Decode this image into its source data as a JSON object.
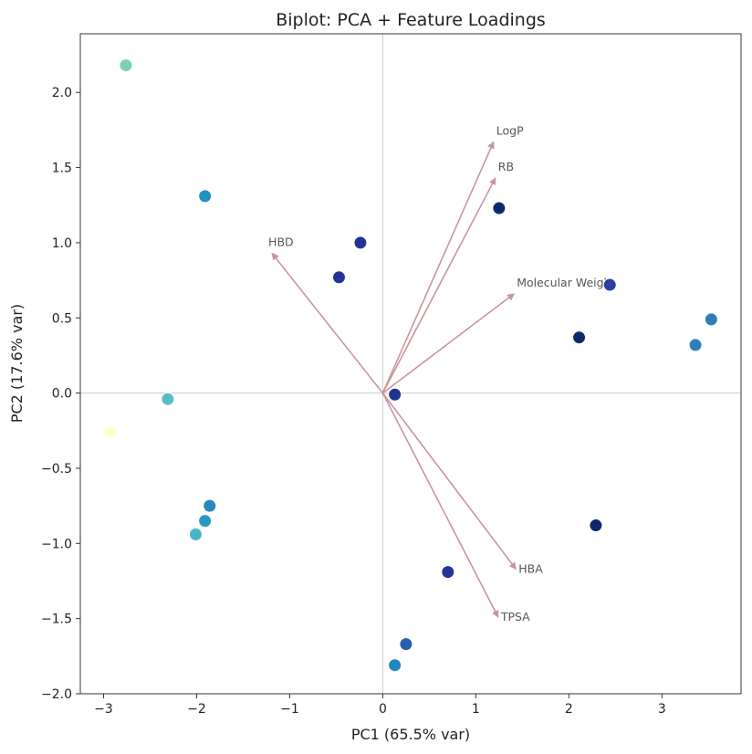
{
  "chart_data": {
    "type": "scatter",
    "title": "Biplot: PCA + Feature Loadings",
    "xlabel": "PC1 (65.5% var)",
    "ylabel": "PC2 (17.6% var)",
    "xlim": [
      -3.25,
      3.85
    ],
    "ylim": [
      -2.0,
      2.39
    ],
    "xticks": [
      -3,
      -2,
      -1,
      0,
      1,
      2,
      3
    ],
    "xtick_labels": [
      "−3",
      "−2",
      "−1",
      "0",
      "1",
      "2",
      "3"
    ],
    "yticks": [
      -2.0,
      -1.5,
      -1.0,
      -0.5,
      0.0,
      0.5,
      1.0,
      1.5,
      2.0
    ],
    "ytick_labels": [
      "−2.0",
      "−1.5",
      "−1.0",
      "−0.5",
      "0.0",
      "0.5",
      "1.0",
      "1.5",
      "2.0"
    ],
    "grid": false,
    "reference_lines": {
      "x": 0,
      "y": 0
    },
    "points": [
      {
        "x": -2.76,
        "y": 2.18,
        "color": "#7fcdbb"
      },
      {
        "x": -1.91,
        "y": 1.31,
        "color": "#1d91c0"
      },
      {
        "x": -0.24,
        "y": 1.0,
        "color": "#253494"
      },
      {
        "x": -0.47,
        "y": 0.77,
        "color": "#253494"
      },
      {
        "x": 1.25,
        "y": 1.23,
        "color": "#0c2a6b"
      },
      {
        "x": 2.44,
        "y": 0.72,
        "color": "#2c3ea0"
      },
      {
        "x": 2.11,
        "y": 0.37,
        "color": "#0c2a6b"
      },
      {
        "x": 3.53,
        "y": 0.49,
        "color": "#2c7fb8"
      },
      {
        "x": 3.36,
        "y": 0.32,
        "color": "#2c7fb8"
      },
      {
        "x": 0.13,
        "y": -0.01,
        "color": "#1f3390"
      },
      {
        "x": -2.31,
        "y": -0.04,
        "color": "#57bfc4"
      },
      {
        "x": -2.93,
        "y": -0.26,
        "color": "#ffffd0"
      },
      {
        "x": -1.86,
        "y": -0.75,
        "color": "#2c86c0"
      },
      {
        "x": -1.91,
        "y": -0.85,
        "color": "#2b97c4"
      },
      {
        "x": -2.01,
        "y": -0.94,
        "color": "#48b6c8"
      },
      {
        "x": 2.29,
        "y": -0.88,
        "color": "#0e2770"
      },
      {
        "x": 0.7,
        "y": -1.19,
        "color": "#253494"
      },
      {
        "x": 0.25,
        "y": -1.67,
        "color": "#2560ac"
      },
      {
        "x": 0.13,
        "y": -1.81,
        "color": "#1f86be"
      }
    ],
    "loadings": [
      {
        "name": "LogP",
        "x": 1.19,
        "y": 1.67
      },
      {
        "name": "RB",
        "x": 1.21,
        "y": 1.43
      },
      {
        "name": "HBD",
        "x": -1.19,
        "y": 0.93
      },
      {
        "name": "Molecular Weight",
        "x": 1.41,
        "y": 0.66
      },
      {
        "name": "HBA",
        "x": 1.43,
        "y": -1.17
      },
      {
        "name": "TPSA",
        "x": 1.24,
        "y": -1.49
      }
    ],
    "arrow_color": "#c9959c"
  }
}
